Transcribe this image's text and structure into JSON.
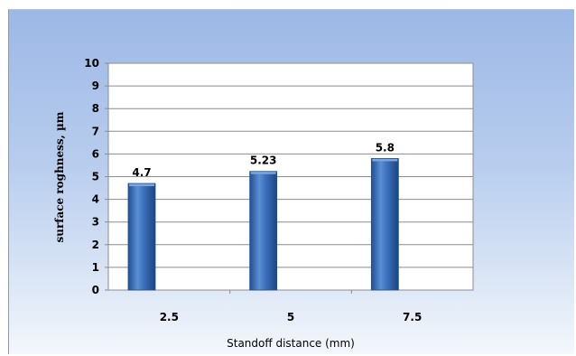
{
  "chart_data": {
    "type": "bar",
    "categories": [
      "2.5",
      "5",
      "7.5"
    ],
    "values": [
      4.7,
      5.23,
      5.8
    ],
    "data_labels": [
      "4.7",
      "5.23",
      "5.8"
    ],
    "title": "",
    "xlabel": "Standoff distance (mm)",
    "ylabel": "surface roghness, µm",
    "ylim": [
      0,
      10
    ],
    "yticks": [
      "0",
      "1",
      "2",
      "3",
      "4",
      "5",
      "6",
      "7",
      "8",
      "9",
      "10"
    ],
    "grid": true,
    "legend": "none",
    "bar_color": "#3f73bd",
    "bar_dark": "#1f4f95",
    "bar_light": "#7fa6dc"
  }
}
